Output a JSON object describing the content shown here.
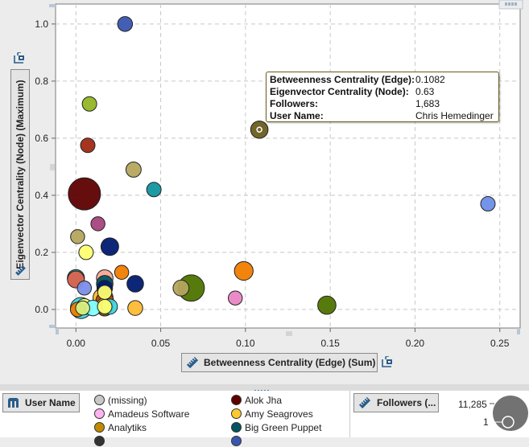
{
  "chart_data": {
    "type": "scatter",
    "title": "",
    "xlabel": "Betweenness Centrality (Edge) (Sum)",
    "ylabel": "Eigenvector Centrality (Node) (Maximum)",
    "xlim": [
      -0.012,
      0.262
    ],
    "ylim": [
      -0.065,
      1.07
    ],
    "xticks": [
      0.0,
      0.05,
      0.1,
      0.15,
      0.2,
      0.25
    ],
    "xtick_labels": [
      "0.00",
      "0.05",
      "0.10",
      "0.15",
      "0.20",
      "0.25"
    ],
    "yticks": [
      0.0,
      0.2,
      0.4,
      0.6,
      0.8,
      1.0
    ],
    "ytick_labels": [
      "0.0",
      "0.2",
      "0.4",
      "0.6",
      "0.8",
      "1.0"
    ],
    "grid": true,
    "size_variable": "Followers",
    "size_range": [
      1,
      11285
    ],
    "color_variable": "User Name",
    "points": [
      {
        "x": 0.029,
        "y": 1.0,
        "size": 900,
        "color": "#3a55b0"
      },
      {
        "x": 0.008,
        "y": 0.72,
        "size": 800,
        "color": "#93b524"
      },
      {
        "x": 0.007,
        "y": 0.575,
        "size": 800,
        "color": "#a02a14"
      },
      {
        "x": 0.1082,
        "y": 0.63,
        "size": 1683,
        "color": "#6b5d1f",
        "highlighted": true
      },
      {
        "x": 0.034,
        "y": 0.49,
        "size": 1000,
        "color": "#b5a55e"
      },
      {
        "x": 0.046,
        "y": 0.42,
        "size": 800,
        "color": "#11959f"
      },
      {
        "x": 0.005,
        "y": 0.405,
        "size": 11285,
        "color": "#5e0000"
      },
      {
        "x": 0.013,
        "y": 0.3,
        "size": 700,
        "color": "#a8437e"
      },
      {
        "x": 0.001,
        "y": 0.255,
        "size": 700,
        "color": "#b5a55e"
      },
      {
        "x": 0.02,
        "y": 0.22,
        "size": 1800,
        "color": "#001a70"
      },
      {
        "x": 0.006,
        "y": 0.2,
        "size": 800,
        "color": "#ffff70"
      },
      {
        "x": 0.243,
        "y": 0.37,
        "size": 800,
        "color": "#6e8ee8"
      },
      {
        "x": 0.099,
        "y": 0.135,
        "size": 2200,
        "color": "#f07d00"
      },
      {
        "x": 0.027,
        "y": 0.13,
        "size": 700,
        "color": "#f07d00"
      },
      {
        "x": 0.035,
        "y": 0.09,
        "size": 1400,
        "color": "#001a70"
      },
      {
        "x": 0.068,
        "y": 0.075,
        "size": 6500,
        "color": "#4e7300"
      },
      {
        "x": 0.062,
        "y": 0.075,
        "size": 1200,
        "color": "#b5a55e"
      },
      {
        "x": 0.094,
        "y": 0.04,
        "size": 700,
        "color": "#e985c4"
      },
      {
        "x": 0.148,
        "y": 0.015,
        "size": 2000,
        "color": "#4e7300"
      },
      {
        "x": 0.035,
        "y": 0.005,
        "size": 900,
        "color": "#ffbb33"
      },
      {
        "x": 0.0,
        "y": 0.11,
        "size": 1600,
        "color": "#129092"
      },
      {
        "x": 0.0,
        "y": 0.105,
        "size": 1500,
        "color": "#de6450"
      },
      {
        "x": 0.005,
        "y": 0.075,
        "size": 700,
        "color": "#7b8ee8"
      },
      {
        "x": 0.017,
        "y": 0.11,
        "size": 1400,
        "color": "#f5a895"
      },
      {
        "x": 0.017,
        "y": 0.09,
        "size": 1400,
        "color": "#005560"
      },
      {
        "x": 0.017,
        "y": 0.075,
        "size": 1100,
        "color": "#001a70"
      },
      {
        "x": 0.016,
        "y": 0.04,
        "size": 2800,
        "color": "#ffbb33"
      },
      {
        "x": 0.017,
        "y": 0.03,
        "size": 1800,
        "color": "#b84a00"
      },
      {
        "x": 0.017,
        "y": 0.06,
        "size": 700,
        "color": "#ffff70"
      },
      {
        "x": 0.02,
        "y": 0.01,
        "size": 1000,
        "color": "#40d6e0"
      },
      {
        "x": 0.017,
        "y": 0.01,
        "size": 1700,
        "color": "#ffbb33"
      },
      {
        "x": 0.017,
        "y": 0.005,
        "size": 1200,
        "color": "#6b5d1f"
      },
      {
        "x": 0.017,
        "y": 0.01,
        "size": 800,
        "color": "#ffff70"
      },
      {
        "x": 0.003,
        "y": 0.005,
        "size": 3300,
        "color": "#40d6e0"
      },
      {
        "x": 0.005,
        "y": 0.01,
        "size": 1200,
        "color": "#ffff70"
      },
      {
        "x": 0.01,
        "y": 0.005,
        "size": 1100,
        "color": "#80ffff"
      },
      {
        "x": 0.004,
        "y": 0.005,
        "size": 700,
        "color": "#d4f07f"
      },
      {
        "x": 0.001,
        "y": 0.0,
        "size": 800,
        "color": "#f07d00"
      }
    ],
    "tooltip": {
      "rows": [
        {
          "key": "Betweenness Centrality (Edge):",
          "value": "0.1082"
        },
        {
          "key": "Eigenvector Centrality (Node):",
          "value": "0.63"
        },
        {
          "key": "Followers:",
          "value": "1,683"
        },
        {
          "key": "User Name:",
          "value": "Chris Hemedinger"
        }
      ]
    }
  },
  "axes": {
    "x_button_label": "Betweenness Centrality (Edge) (Sum)",
    "y_button_label": "Eigenvector Centrality (Node) (Maximum)"
  },
  "legend": {
    "color_button_label": "User Name",
    "size_button_label": "Followers (...",
    "items": [
      {
        "label": "(missing)",
        "color": "#c8c8c8"
      },
      {
        "label": "Alok Jha",
        "color": "#5e0000"
      },
      {
        "label": "Amadeus Software",
        "color": "#ffb3f0"
      },
      {
        "label": "Amy Seagroves",
        "color": "#ffc830"
      },
      {
        "label": "Analytiks",
        "color": "#c08a00"
      },
      {
        "label": "Big Green Puppet",
        "color": "#005560"
      }
    ],
    "size_max_label": "11,285",
    "size_min_label": "1"
  }
}
